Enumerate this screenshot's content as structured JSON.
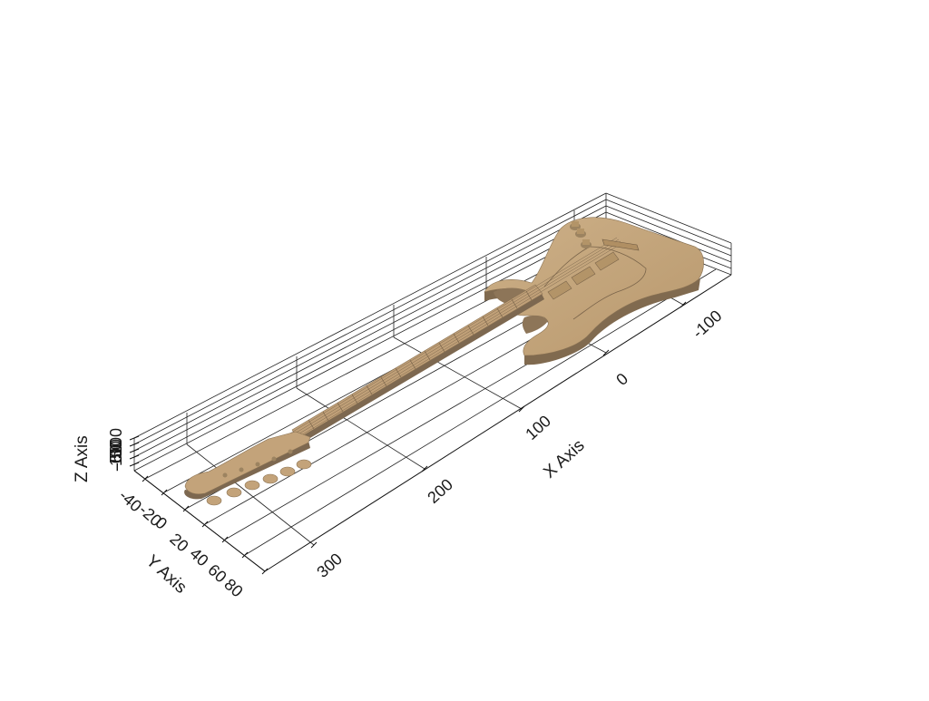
{
  "chart_data": {
    "type": "3d-mesh",
    "mesh_color": "#c3a37a",
    "x_axis": {
      "title": "X Axis",
      "tick_labels": [
        "-100",
        "0",
        "100",
        "200",
        "300"
      ]
    },
    "y_axis": {
      "title": "Y Axis",
      "tick_labels": [
        "-40",
        "-20",
        "0",
        "20",
        "40",
        "60",
        "80"
      ]
    },
    "z_axis": {
      "title": "Z Axis",
      "tick_labels": [
        "-100",
        "-50",
        "0",
        "50",
        "100"
      ]
    },
    "grid": true
  }
}
